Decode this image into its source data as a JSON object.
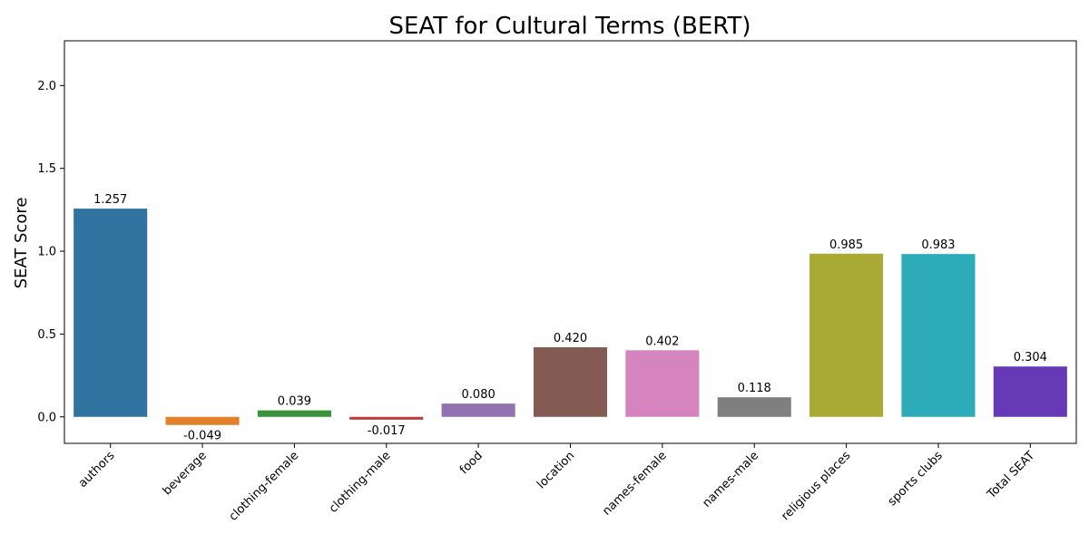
{
  "chart_data": {
    "type": "bar",
    "title": "SEAT for Cultural Terms (BERT)",
    "xlabel": "",
    "ylabel": "SEAT Score",
    "categories": [
      "authors",
      "beverage",
      "clothing-female",
      "clothing-male",
      "food",
      "location",
      "names-female",
      "names-male",
      "religious places",
      "sports clubs",
      "Total SEAT"
    ],
    "values": [
      1.257,
      -0.049,
      0.039,
      -0.017,
      0.08,
      0.42,
      0.402,
      0.118,
      0.985,
      0.983,
      0.304
    ],
    "data_labels": [
      "1.257",
      "-0.049",
      "0.039",
      "-0.017",
      "0.080",
      "0.420",
      "0.402",
      "0.118",
      "0.985",
      "0.983",
      "0.304"
    ],
    "colors": [
      "#3274a1",
      "#e1812c",
      "#3a923a",
      "#c03d3e",
      "#9372b2",
      "#845b53",
      "#d684bd",
      "#7f7f7f",
      "#a9aa35",
      "#2eabb8",
      "#6639b7"
    ],
    "yticks": [
      0.0,
      0.5,
      1.0,
      1.5,
      2.0
    ],
    "ytick_labels": [
      "0.0",
      "0.5",
      "1.0",
      "1.5",
      "2.0"
    ],
    "ylim": [
      -0.16,
      2.27
    ],
    "grid": false,
    "legend": "none"
  }
}
